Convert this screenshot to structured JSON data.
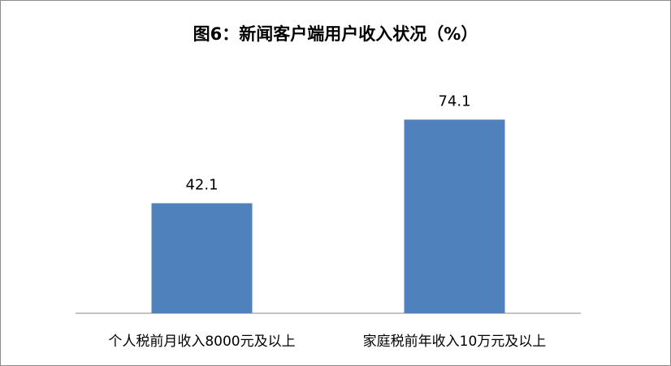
{
  "chart_data": {
    "type": "bar",
    "title": "图6：新闻客户端用户收入状况（%）",
    "categories": [
      "个人税前月收入8000元及以上",
      "家庭税前年收入10万元及以上"
    ],
    "values": [
      42.1,
      74.1
    ],
    "value_labels": [
      "42.1",
      "74.1"
    ],
    "xlabel": "",
    "ylabel": "",
    "ylim": [
      0,
      100
    ],
    "grid": false,
    "legend": "none",
    "bar_color": "#4f81bd"
  }
}
